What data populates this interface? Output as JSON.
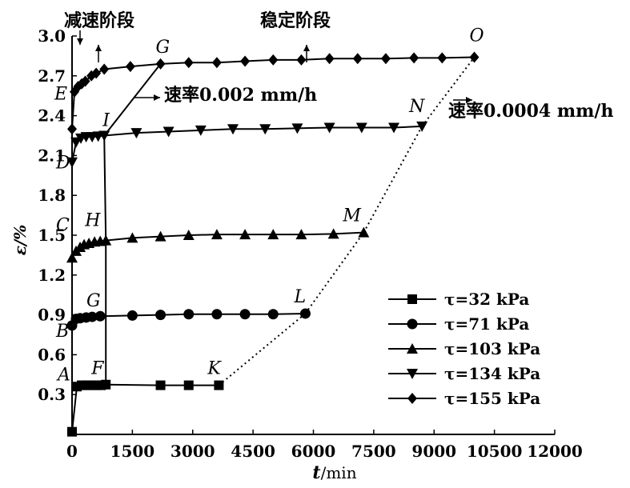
{
  "chart_data": {
    "type": "line",
    "xlabel_var": "t",
    "xlabel_unit": "/min",
    "ylabel": "ε/%",
    "xlim": [
      0,
      12000
    ],
    "ylim": [
      0,
      3.0
    ],
    "xticks": [
      "0",
      "1500",
      "3000",
      "4500",
      "6000",
      "7500",
      "9000",
      "10500",
      "12000"
    ],
    "yticks": [
      "0.3",
      "0.6",
      "0.9",
      "1.2",
      "1.5",
      "1.8",
      "2.1",
      "2.4",
      "2.7",
      "3.0"
    ],
    "series": [
      {
        "name": "τ=32 kPa",
        "marker": "square",
        "x": [
          0,
          120,
          240,
          360,
          480,
          600,
          720,
          840,
          2200,
          2900,
          3650
        ],
        "y": [
          0.02,
          0.36,
          0.37,
          0.37,
          0.37,
          0.37,
          0.37,
          0.375,
          0.37,
          0.37,
          0.37
        ]
      },
      {
        "name": "τ=71 kPa",
        "marker": "circle",
        "x": [
          0,
          100,
          200,
          350,
          500,
          700,
          1500,
          2200,
          2900,
          3600,
          4300,
          5000,
          5800
        ],
        "y": [
          0.82,
          0.87,
          0.875,
          0.88,
          0.885,
          0.89,
          0.895,
          0.9,
          0.905,
          0.905,
          0.905,
          0.905,
          0.91
        ]
      },
      {
        "name": "τ=103 kPa",
        "marker": "triangle-up",
        "x": [
          0,
          100,
          200,
          300,
          420,
          560,
          700,
          840,
          1500,
          2200,
          2900,
          3600,
          4300,
          5000,
          5700,
          6500,
          7250
        ],
        "y": [
          1.33,
          1.38,
          1.41,
          1.43,
          1.44,
          1.45,
          1.455,
          1.46,
          1.48,
          1.49,
          1.5,
          1.505,
          1.505,
          1.505,
          1.505,
          1.51,
          1.52
        ]
      },
      {
        "name": "τ=134 kPa",
        "marker": "triangle-down",
        "x": [
          0,
          100,
          220,
          350,
          500,
          650,
          800,
          1600,
          2400,
          3200,
          4000,
          4800,
          5600,
          6400,
          7200,
          8000,
          8700
        ],
        "y": [
          2.05,
          2.2,
          2.23,
          2.24,
          2.24,
          2.245,
          2.25,
          2.27,
          2.28,
          2.29,
          2.3,
          2.3,
          2.305,
          2.31,
          2.31,
          2.31,
          2.32
        ]
      },
      {
        "name": "τ=155 kPa",
        "marker": "diamond",
        "x": [
          0,
          60,
          150,
          240,
          330,
          480,
          600,
          800,
          1450,
          2200,
          2900,
          3600,
          4300,
          5000,
          5700,
          6400,
          7100,
          7800,
          8500,
          9200,
          10000
        ],
        "y": [
          2.3,
          2.58,
          2.62,
          2.64,
          2.66,
          2.7,
          2.72,
          2.75,
          2.77,
          2.79,
          2.8,
          2.8,
          2.81,
          2.82,
          2.82,
          2.83,
          2.83,
          2.83,
          2.835,
          2.835,
          2.84
        ]
      }
    ],
    "point_labels": [
      {
        "text": "A",
        "x": 0,
        "y": 0.37
      },
      {
        "text": "B",
        "x": 0,
        "y": 0.82
      },
      {
        "text": "C",
        "x": 0,
        "y": 1.52
      },
      {
        "text": "D",
        "x": 0,
        "y": 2.05
      },
      {
        "text": "E",
        "x": 0,
        "y": 2.58
      },
      {
        "text": "F",
        "x": 840,
        "y": 0.37
      },
      {
        "text": "G",
        "x": 240,
        "y": 0.88
      },
      {
        "text": "H",
        "x": 840,
        "y": 1.46
      },
      {
        "text": "I",
        "x": 800,
        "y": 2.25
      },
      {
        "text": "G",
        "x": 2200,
        "y": 2.79
      },
      {
        "text": "K",
        "x": 3650,
        "y": 0.37
      },
      {
        "text": "L",
        "x": 5800,
        "y": 0.91
      },
      {
        "text": "M",
        "x": 7250,
        "y": 1.52
      },
      {
        "text": "N",
        "x": 8700,
        "y": 2.32
      },
      {
        "text": "O",
        "x": 10000,
        "y": 2.84
      }
    ],
    "solid_connectors": [
      {
        "from": [
          840,
          0.375
        ],
        "to": [
          840,
          1.46
        ]
      },
      {
        "from": [
          840,
          1.46
        ],
        "to": [
          800,
          2.25
        ]
      },
      {
        "from": [
          800,
          2.25
        ],
        "to": [
          2200,
          2.79
        ]
      }
    ],
    "dotted_connectors": [
      {
        "from": [
          3650,
          0.37
        ],
        "to": [
          5800,
          0.91
        ]
      },
      {
        "from": [
          5800,
          0.91
        ],
        "to": [
          7250,
          1.52
        ]
      },
      {
        "from": [
          7250,
          1.52
        ],
        "to": [
          8700,
          2.32
        ]
      },
      {
        "from": [
          8700,
          2.32
        ],
        "to": [
          10000,
          2.84
        ]
      }
    ],
    "annotations": {
      "decel_stage": "减速阶段",
      "stable_stage": "稳定阶段",
      "rate_solid": "速率0.002 mm/h",
      "rate_dotted": "速率0.0004 mm/h"
    },
    "legend_position": "bottom-right"
  }
}
